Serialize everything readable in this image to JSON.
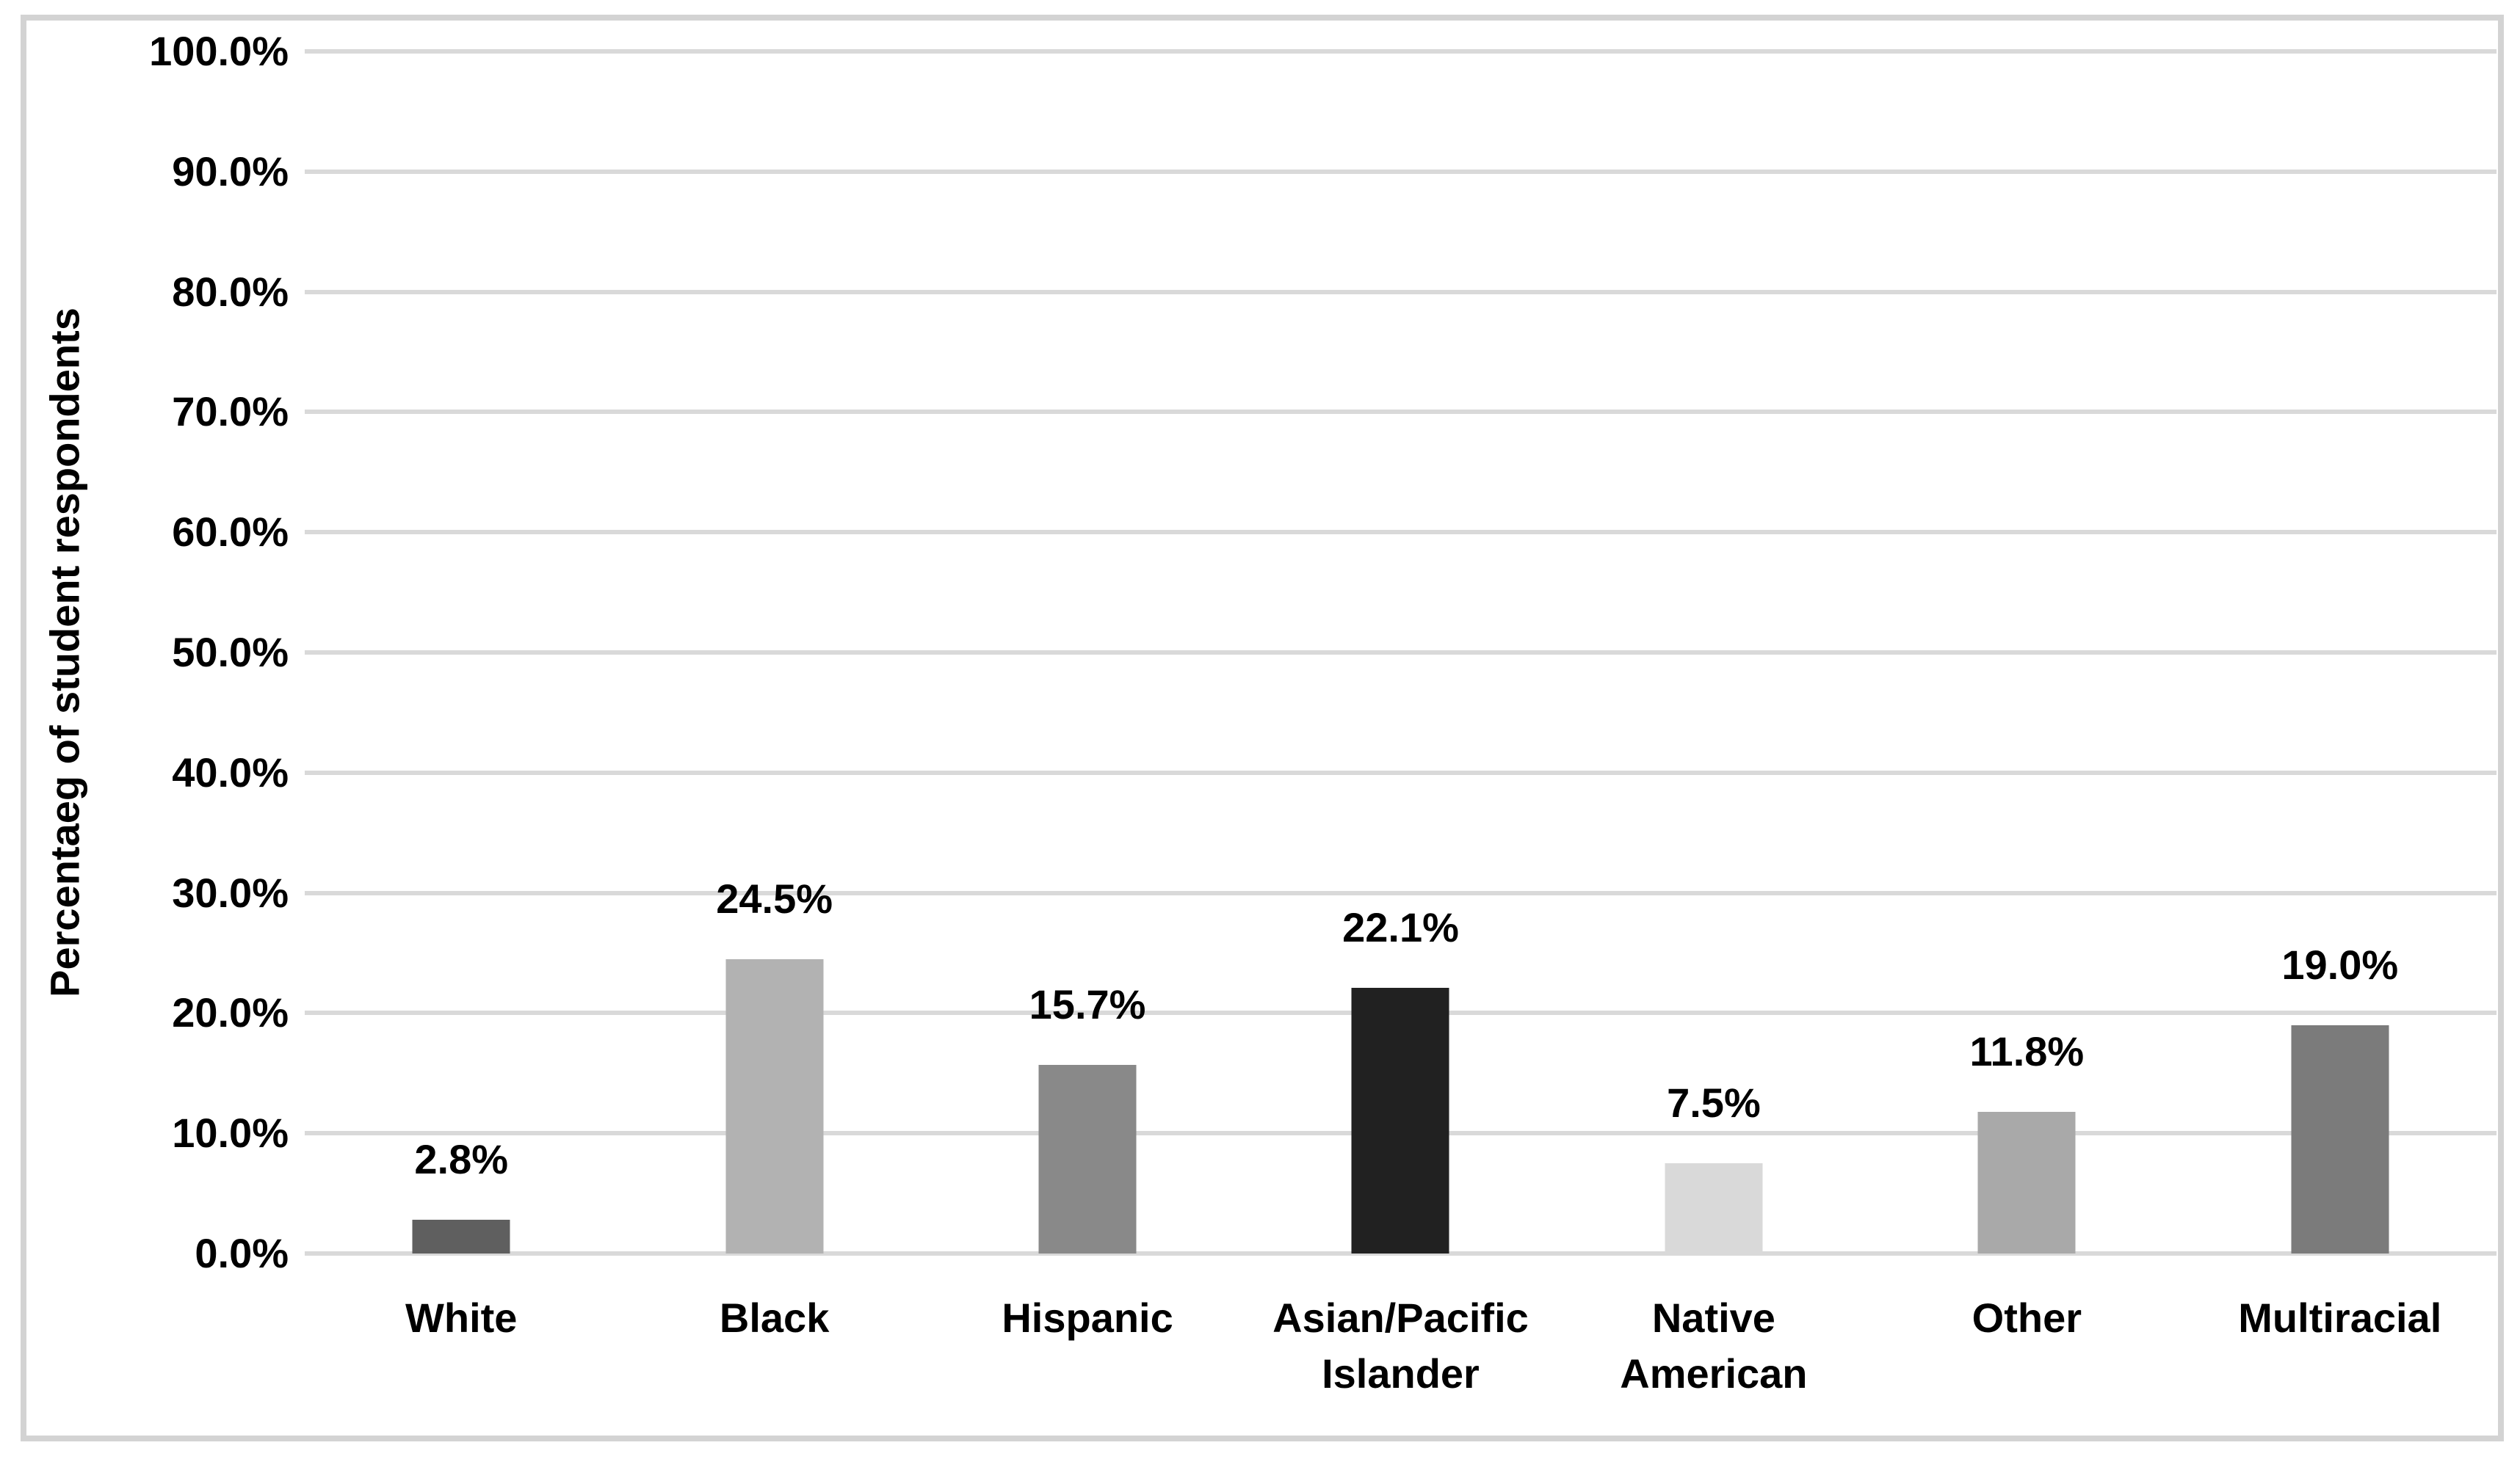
{
  "chart_data": {
    "type": "bar",
    "categories": [
      "White",
      "Black",
      "Hispanic",
      "Asian/Pacific Islander",
      "Native American",
      "Other",
      "Multiracial"
    ],
    "values": [
      2.8,
      24.5,
      15.7,
      22.1,
      7.5,
      11.8,
      19.0
    ],
    "data_labels": [
      "2.8%",
      "24.5%",
      "15.7%",
      "22.1%",
      "7.5%",
      "11.8%",
      "19.0%"
    ],
    "bar_colors": [
      "#5f5f5f",
      "#b2b2b2",
      "#898989",
      "#212121",
      "#d9d9d9",
      "#a9a9a9",
      "#7b7b7b"
    ],
    "ylabel": "Percentaeg of student respondents",
    "ylim": [
      0,
      100
    ],
    "yticks": [
      "100.0%",
      "90.0%",
      "80.0%",
      "70.0%",
      "60.0%",
      "50.0%",
      "40.0%",
      "30.0%",
      "20.0%",
      "10.0%",
      "0.0%"
    ],
    "grid": "horizontal",
    "legend": "none"
  },
  "styles": {
    "gridline_color": "#d9d9d9",
    "frame_color": "#d3d3d3",
    "background": "#ffffff",
    "text_color": "#000000"
  }
}
